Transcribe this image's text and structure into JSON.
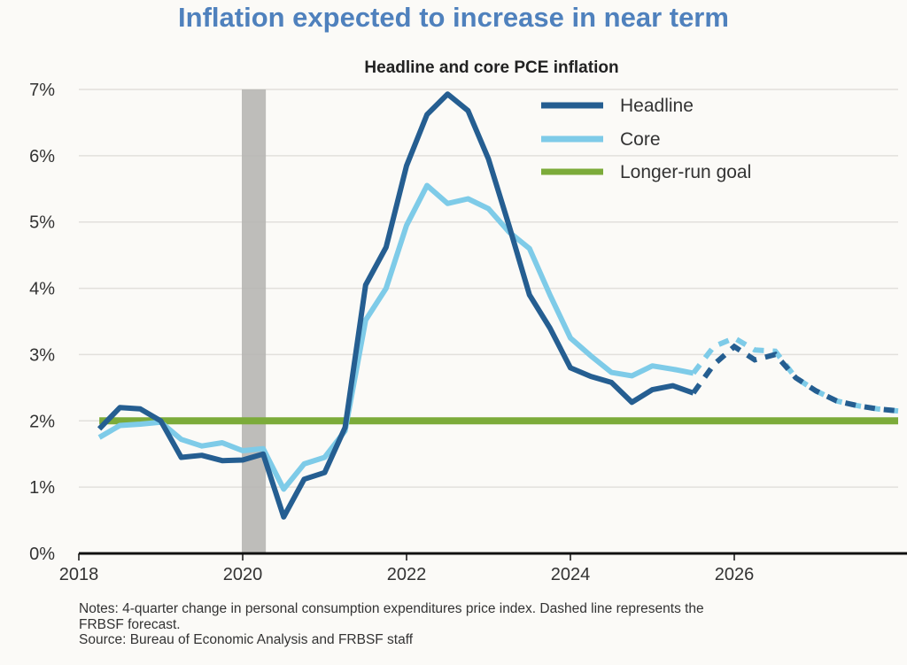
{
  "page": {
    "title": "Inflation expected to increase in near term",
    "notes_line1": "Notes: 4-quarter change in personal consumption expenditures price index. Dashed line represents the",
    "notes_line2": "FRBSF forecast.",
    "source": "Source: Bureau of Economic Analysis and FRBSF staff"
  },
  "chart_data": {
    "type": "line",
    "title": "Headline and core PCE inflation",
    "xlabel": "",
    "ylabel": "",
    "xlim": [
      2018,
      2028
    ],
    "ylim": [
      0,
      7
    ],
    "yticks": [
      0,
      1,
      2,
      3,
      4,
      5,
      6,
      7
    ],
    "ytick_labels": [
      "0%",
      "1%",
      "2%",
      "3%",
      "4%",
      "5%",
      "6%",
      "7%"
    ],
    "xticks": [
      2018,
      2020,
      2022,
      2024,
      2026
    ],
    "xtick_labels": [
      "2018",
      "2020",
      "2022",
      "2024",
      "2026"
    ],
    "grid": "horizontal",
    "legend": "top-right",
    "recession_shading": {
      "start": 2020.0,
      "end": 2020.25,
      "color": "#b7b6b2"
    },
    "forecast_start": 2025.5,
    "x": [
      2018.25,
      2018.5,
      2018.75,
      2019.0,
      2019.25,
      2019.5,
      2019.75,
      2020.0,
      2020.25,
      2020.5,
      2020.75,
      2021.0,
      2021.25,
      2021.5,
      2021.75,
      2022.0,
      2022.25,
      2022.5,
      2022.75,
      2023.0,
      2023.25,
      2023.5,
      2023.75,
      2024.0,
      2024.25,
      2024.5,
      2024.75,
      2025.0,
      2025.25,
      2025.5,
      2025.75,
      2026.0,
      2026.25,
      2026.5,
      2026.75,
      2027.0,
      2027.25,
      2027.5,
      2027.75,
      2028.0
    ],
    "series": [
      {
        "name": "Headline",
        "color": "#255e91",
        "values": [
          1.88,
          2.2,
          2.18,
          2.0,
          1.45,
          1.48,
          1.4,
          1.41,
          1.5,
          0.55,
          1.12,
          1.22,
          1.9,
          4.05,
          4.62,
          5.85,
          6.62,
          6.93,
          6.68,
          5.95,
          4.95,
          3.9,
          3.4,
          2.8,
          2.67,
          2.58,
          2.28,
          2.47,
          2.53,
          2.42,
          2.85,
          3.12,
          2.92,
          3.0,
          2.65,
          2.45,
          2.3,
          2.23,
          2.18,
          2.15
        ]
      },
      {
        "name": "Core",
        "color": "#7ecbe8",
        "values": [
          1.75,
          1.93,
          1.95,
          1.98,
          1.72,
          1.62,
          1.67,
          1.55,
          1.58,
          0.97,
          1.35,
          1.45,
          1.85,
          3.52,
          4.0,
          4.95,
          5.55,
          5.28,
          5.35,
          5.2,
          4.85,
          4.6,
          3.9,
          3.25,
          2.98,
          2.73,
          2.68,
          2.83,
          2.78,
          2.72,
          3.12,
          3.25,
          3.07,
          3.05,
          2.65,
          2.45,
          2.3,
          2.23,
          2.18,
          2.15
        ]
      },
      {
        "name": "Longer-run goal",
        "color": "#7cab3a",
        "constant": 2.0,
        "x_start": 2018.25,
        "x_end": 2028.0
      }
    ]
  }
}
